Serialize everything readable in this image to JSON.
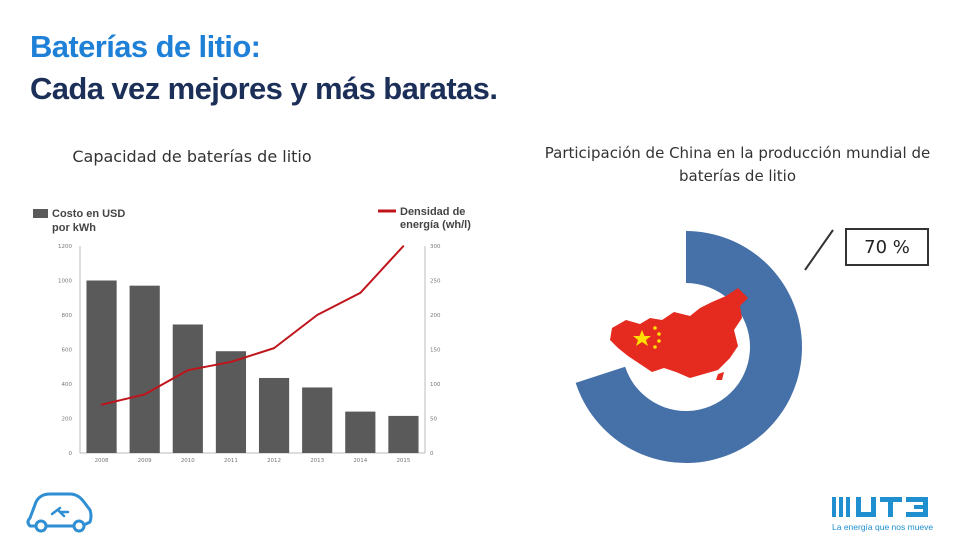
{
  "slide": {
    "title_line1": "Baterías de litio:",
    "title_line2": "Cada vez mejores y más baratas."
  },
  "left_caption": "Capacidad de baterías de litio",
  "right_caption": "Participación de China en la producción mundial de baterías de litio",
  "colors": {
    "bar": "#5a5a5a",
    "line": "#c0141c",
    "donut": "#4570a8",
    "china_red": "#e52b20",
    "china_star": "#ffde00",
    "title_blue": "#1f80d8",
    "title_navy": "#1b2f58"
  },
  "chart_data": [
    {
      "type": "bar",
      "categories": [
        "2008",
        "2009",
        "2010",
        "2011",
        "2012",
        "2013",
        "2014",
        "2015"
      ],
      "series": [
        {
          "name": "Costo en USD por kWh",
          "axis": "left",
          "values": [
            1000,
            970,
            745,
            590,
            435,
            380,
            240,
            215
          ]
        },
        {
          "name": "Densidad de energía (wh/l)",
          "axis": "right",
          "type": "line",
          "values": [
            70,
            85,
            120,
            132,
            152,
            200,
            232,
            300
          ]
        }
      ],
      "legend": {
        "bar_label_line1": "Costo en USD",
        "bar_label_line2": "por kWh",
        "line_label_line1": "Densidad de",
        "line_label_line2": "energía (wh/l)"
      },
      "y_left": {
        "ylim": [
          0,
          1200
        ],
        "ticks": [
          0,
          200,
          400,
          600,
          800,
          1000,
          1200
        ]
      },
      "y_right": {
        "ylim": [
          0,
          300
        ],
        "ticks": [
          0,
          50,
          100,
          150,
          200,
          250,
          300
        ]
      },
      "legend_position": "top"
    },
    {
      "type": "pie",
      "style": "donut",
      "slices": [
        {
          "label": "China",
          "value": 70
        },
        {
          "label": "",
          "value": 30
        }
      ],
      "label_text": "70 %"
    }
  ],
  "logo_text": "La energía que nos mueve",
  "icons": [
    "electric-car-icon",
    "ute-logo",
    "china-map-icon"
  ]
}
